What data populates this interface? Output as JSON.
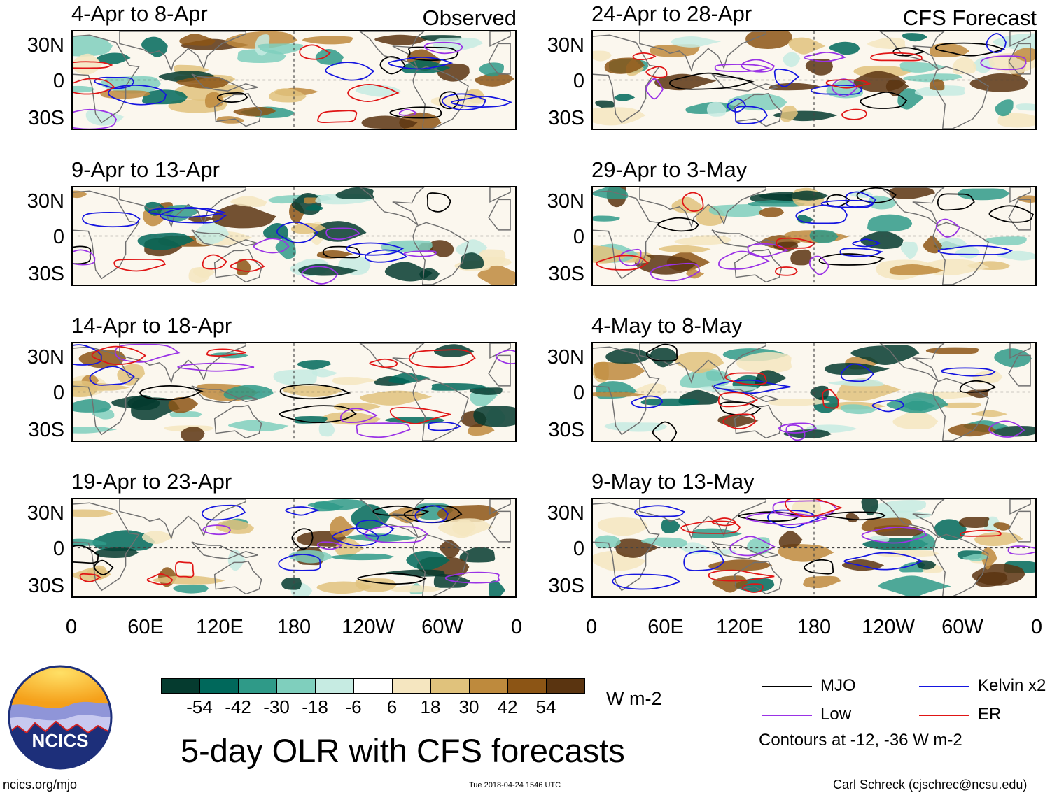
{
  "chart_data": {
    "type": "map_panels",
    "title": "5-day OLR with CFS forecasts",
    "units": "W m-2",
    "columns": [
      {
        "label": "Observed",
        "panels": [
          "4-Apr to 8-Apr",
          "9-Apr to 13-Apr",
          "14-Apr to 18-Apr",
          "19-Apr to 23-Apr"
        ]
      },
      {
        "label": "CFS Forecast",
        "panels": [
          "24-Apr to 28-Apr",
          "29-Apr to 3-May",
          "4-May to 8-May",
          "9-May to 13-May"
        ]
      }
    ],
    "lat_ticks": [
      "30N",
      "0",
      "30S"
    ],
    "lon_ticks": [
      "0",
      "60E",
      "120E",
      "180",
      "120W",
      "60W",
      "0"
    ],
    "colorbar": {
      "labels": [
        "-54",
        "-42",
        "-30",
        "-18",
        "-6",
        "6",
        "18",
        "30",
        "42",
        "54"
      ],
      "colors": [
        "#053b2f",
        "#00685b",
        "#2f9a88",
        "#7fcfbd",
        "#c6ebe2",
        "#ffffff",
        "#f5e6c0",
        "#e0c27c",
        "#be8a3d",
        "#8c5515",
        "#5a3410"
      ]
    },
    "legend": [
      {
        "label": "MJO",
        "color": "#000000"
      },
      {
        "label": "Kelvin x2",
        "color": "#1515e0"
      },
      {
        "label": "Low",
        "color": "#9a32e6"
      },
      {
        "label": "ER",
        "color": "#e01515"
      }
    ],
    "contours_note": "Contours at -12, -36 W m-2"
  },
  "logo": {
    "text": "NCICS"
  },
  "footer": {
    "url": "ncics.org/mjo",
    "timestamp": "Tue 2018-04-24 1546 UTC",
    "author": "Carl Schreck (cjschrec@ncsu.edu)"
  }
}
